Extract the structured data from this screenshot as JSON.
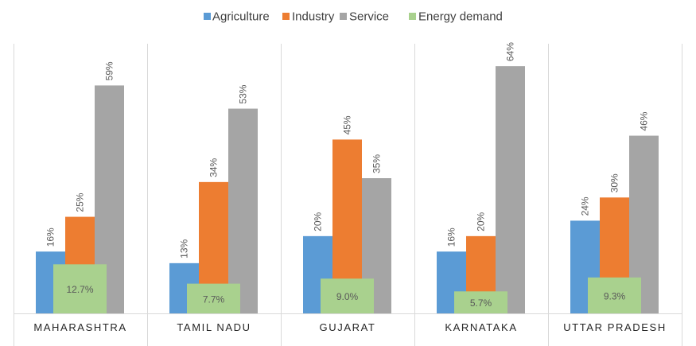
{
  "chart_data": {
    "type": "bar",
    "title": "",
    "xlabel": "",
    "ylabel": "",
    "ylim": [
      0,
      70
    ],
    "grid": false,
    "legend_position": "top-center",
    "categories": [
      "MAHARASHTRA",
      "TAMIL NADU",
      "GUJARAT",
      "KARNATAKA",
      "UTTAR PRADESH"
    ],
    "series": [
      {
        "name": "Agriculture",
        "color": "#5b9bd5",
        "values": [
          16,
          13,
          20,
          16,
          24
        ],
        "labels": [
          "16%",
          "13%",
          "20%",
          "16%",
          "24%"
        ]
      },
      {
        "name": "Industry",
        "color": "#ed7d31",
        "values": [
          25,
          34,
          45,
          20,
          30
        ],
        "labels": [
          "25%",
          "34%",
          "45%",
          "20%",
          "30%"
        ]
      },
      {
        "name": "Service",
        "color": "#a5a5a5",
        "values": [
          59,
          53,
          35,
          64,
          46
        ],
        "labels": [
          "59%",
          "53%",
          "35%",
          "64%",
          "46%"
        ]
      },
      {
        "name": "Energy demand",
        "color": "#a9d18e",
        "values": [
          12.7,
          7.7,
          9.0,
          5.7,
          9.3
        ],
        "labels": [
          "12.7%",
          "7.7%",
          "9.0%",
          "5.7%",
          "9.3%"
        ]
      }
    ]
  }
}
